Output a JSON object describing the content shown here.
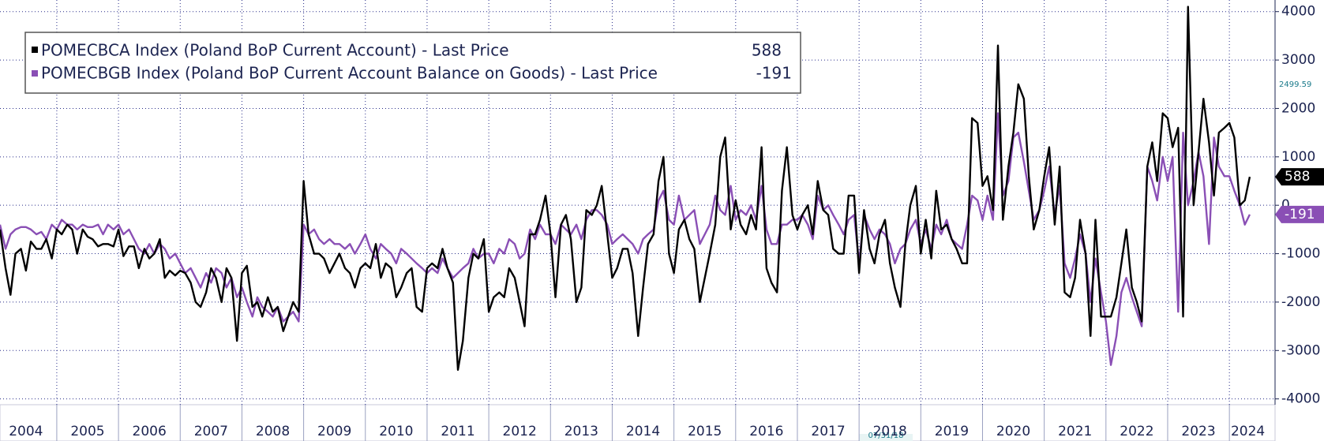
{
  "chart_data": {
    "type": "line",
    "x": [
      2004.08,
      2004.17,
      2004.25,
      2004.33,
      2004.42,
      2004.5,
      2004.58,
      2004.67,
      2004.75,
      2004.83,
      2004.92,
      2005,
      2005.08,
      2005.17,
      2005.25,
      2005.33,
      2005.42,
      2005.5,
      2005.58,
      2005.67,
      2005.75,
      2005.83,
      2005.92,
      2006,
      2006.08,
      2006.17,
      2006.25,
      2006.33,
      2006.42,
      2006.5,
      2006.58,
      2006.67,
      2006.75,
      2006.83,
      2006.92,
      2007,
      2007.08,
      2007.17,
      2007.25,
      2007.33,
      2007.42,
      2007.5,
      2007.58,
      2007.67,
      2007.75,
      2007.83,
      2007.92,
      2008,
      2008.08,
      2008.17,
      2008.25,
      2008.33,
      2008.42,
      2008.5,
      2008.58,
      2008.67,
      2008.75,
      2008.83,
      2008.92,
      2009,
      2009.08,
      2009.17,
      2009.25,
      2009.33,
      2009.42,
      2009.5,
      2009.58,
      2009.67,
      2009.75,
      2009.83,
      2009.92,
      2010,
      2010.08,
      2010.17,
      2010.25,
      2010.33,
      2010.42,
      2010.5,
      2010.58,
      2010.67,
      2010.75,
      2010.83,
      2010.92,
      2011,
      2011.08,
      2011.17,
      2011.25,
      2011.33,
      2011.42,
      2011.5,
      2011.58,
      2011.67,
      2011.75,
      2011.83,
      2011.92,
      2012,
      2012.08,
      2012.17,
      2012.25,
      2012.33,
      2012.42,
      2012.5,
      2012.58,
      2012.67,
      2012.75,
      2012.83,
      2012.92,
      2013,
      2013.08,
      2013.17,
      2013.25,
      2013.33,
      2013.42,
      2013.5,
      2013.58,
      2013.67,
      2013.75,
      2013.83,
      2013.92,
      2014,
      2014.08,
      2014.17,
      2014.25,
      2014.33,
      2014.42,
      2014.5,
      2014.58,
      2014.67,
      2014.75,
      2014.83,
      2014.92,
      2015,
      2015.08,
      2015.17,
      2015.25,
      2015.33,
      2015.42,
      2015.5,
      2015.58,
      2015.67,
      2015.75,
      2015.83,
      2015.92,
      2016,
      2016.08,
      2016.17,
      2016.25,
      2016.33,
      2016.42,
      2016.5,
      2016.58,
      2016.67,
      2016.75,
      2016.83,
      2016.92,
      2017,
      2017.08,
      2017.17,
      2017.25,
      2017.33,
      2017.42,
      2017.5,
      2017.58,
      2017.67,
      2017.75,
      2017.83,
      2017.92,
      2018,
      2018.08,
      2018.17,
      2018.25,
      2018.33,
      2018.42,
      2018.5,
      2018.58,
      2018.67,
      2018.75,
      2018.83,
      2018.92,
      2019,
      2019.08,
      2019.17,
      2019.25,
      2019.33,
      2019.42,
      2019.5,
      2019.58,
      2019.67,
      2019.75,
      2019.83,
      2019.92,
      2020,
      2020.08,
      2020.17,
      2020.25,
      2020.33,
      2020.42,
      2020.5,
      2020.58,
      2020.67,
      2020.75,
      2020.83,
      2020.92,
      2021,
      2021.08,
      2021.17,
      2021.25,
      2021.33,
      2021.42,
      2021.5,
      2021.58,
      2021.67,
      2021.75,
      2021.83,
      2021.92,
      2022,
      2022.08,
      2022.17,
      2022.25,
      2022.33,
      2022.42,
      2022.5,
      2022.58,
      2022.67,
      2022.75,
      2022.83,
      2022.92,
      2023,
      2023.08,
      2023.17,
      2023.25,
      2023.33,
      2023.42,
      2023.5,
      2023.58,
      2023.67,
      2023.75,
      2023.83,
      2023.92,
      2024,
      2024.08,
      2024.17,
      2024.25,
      2024.33
    ],
    "series": [
      {
        "name": "POMECBCA Index (Poland BoP Current Account) - Last Price",
        "color": "#000000",
        "values": [
          -500,
          -1300,
          -1850,
          -1000,
          -900,
          -1350,
          -750,
          -900,
          -900,
          -700,
          -1100,
          -500,
          -600,
          -400,
          -500,
          -1000,
          -500,
          -650,
          -700,
          -850,
          -800,
          -800,
          -850,
          -500,
          -1050,
          -850,
          -850,
          -1300,
          -900,
          -1100,
          -1000,
          -700,
          -1500,
          -1350,
          -1450,
          -1350,
          -1400,
          -1600,
          -2000,
          -2100,
          -1800,
          -1300,
          -1500,
          -2000,
          -1300,
          -1500,
          -2800,
          -1400,
          -1250,
          -2100,
          -2000,
          -2300,
          -1900,
          -2200,
          -2100,
          -2600,
          -2300,
          -2000,
          -2200,
          500,
          -600,
          -1000,
          -1000,
          -1100,
          -1400,
          -1200,
          -1000,
          -1300,
          -1400,
          -1700,
          -1300,
          -1200,
          -1300,
          -800,
          -1500,
          -1200,
          -1300,
          -1900,
          -1700,
          -1400,
          -1300,
          -2100,
          -2200,
          -1300,
          -1200,
          -1300,
          -900,
          -1300,
          -1600,
          -3400,
          -2800,
          -1500,
          -1000,
          -1100,
          -700,
          -2200,
          -1900,
          -1800,
          -1900,
          -1300,
          -1500,
          -2000,
          -2500,
          -600,
          -600,
          -300,
          200,
          -600,
          -1900,
          -400,
          -200,
          -700,
          -2000,
          -1700,
          -100,
          -200,
          0,
          400,
          -600,
          -1500,
          -1300,
          -900,
          -900,
          -1400,
          -2700,
          -1700,
          -800,
          -600,
          500,
          1000,
          -1000,
          -1400,
          -500,
          -300,
          -700,
          -900,
          -2000,
          -1500,
          -1000,
          -400,
          1000,
          1400,
          -500,
          100,
          -400,
          -600,
          -200,
          -500,
          1200,
          -1300,
          -1600,
          -1800,
          300,
          1200,
          -200,
          -500,
          -200,
          0,
          -600,
          500,
          -100,
          -200,
          -900,
          -1000,
          -1000,
          200,
          200,
          -1400,
          -100,
          -900,
          -1200,
          -600,
          -300,
          -1200,
          -1700,
          -2100,
          -800,
          0,
          400,
          -1000,
          -300,
          -1100,
          300,
          -500,
          -400,
          -700,
          -900,
          -1200,
          -1200,
          1800,
          1700,
          400,
          600,
          -100,
          3300,
          -300,
          800,
          1500,
          2500,
          2200,
          600,
          -500,
          -100,
          600,
          1200,
          -400,
          800,
          -1800,
          -1900,
          -1500,
          -300,
          -1000,
          -2700,
          -300,
          -2300,
          -2300,
          -2300,
          -1900,
          -1200,
          -500,
          -1700,
          -2000,
          -2400,
          800,
          1300,
          500,
          1900,
          1800,
          1200,
          1600,
          -2300,
          4100,
          0,
          1100,
          2200,
          1300,
          200,
          1500,
          1600,
          1700,
          1400,
          0,
          100,
          588
        ]
      },
      {
        "name": "POMECBGB Index (Poland BoP Current Account Balance on Goods) - Last Price",
        "color": "#8a4fb5",
        "values": [
          -400,
          -900,
          -600,
          -500,
          -450,
          -450,
          -500,
          -600,
          -550,
          -700,
          -400,
          -500,
          -300,
          -400,
          -400,
          -500,
          -400,
          -450,
          -450,
          -400,
          -600,
          -400,
          -500,
          -400,
          -600,
          -500,
          -700,
          -900,
          -1000,
          -800,
          -1000,
          -800,
          -900,
          -1100,
          -1000,
          -1200,
          -1400,
          -1300,
          -1500,
          -1700,
          -1400,
          -1600,
          -1300,
          -1400,
          -1700,
          -1500,
          -1900,
          -1700,
          -2000,
          -2300,
          -1900,
          -2100,
          -2200,
          -2300,
          -2100,
          -2400,
          -2300,
          -2200,
          -2400,
          -400,
          -600,
          -500,
          -700,
          -800,
          -700,
          -800,
          -800,
          -900,
          -800,
          -1000,
          -800,
          -600,
          -900,
          -1100,
          -800,
          -900,
          -1000,
          -1200,
          -900,
          -1000,
          -1100,
          -1200,
          -1300,
          -1400,
          -1300,
          -1400,
          -1100,
          -1300,
          -1500,
          -1400,
          -1300,
          -1200,
          -900,
          -1100,
          -1000,
          -1000,
          -1200,
          -900,
          -1000,
          -700,
          -800,
          -1100,
          -1000,
          -500,
          -700,
          -400,
          -600,
          -600,
          -800,
          -400,
          -500,
          -600,
          -400,
          -700,
          -300,
          -100,
          -100,
          -200,
          -400,
          -800,
          -700,
          -600,
          -700,
          -800,
          -1000,
          -700,
          -600,
          -500,
          100,
          300,
          -300,
          -400,
          200,
          -300,
          -200,
          -100,
          -800,
          -600,
          -400,
          200,
          -100,
          -200,
          400,
          -300,
          -100,
          -200,
          0,
          -300,
          400,
          -500,
          -800,
          -800,
          -400,
          -400,
          -300,
          -300,
          -200,
          -400,
          -700,
          200,
          -100,
          0,
          -200,
          -400,
          -600,
          -300,
          -200,
          -1200,
          -200,
          -500,
          -700,
          -500,
          -600,
          -800,
          -1200,
          -900,
          -800,
          -500,
          -300,
          -800,
          -500,
          -900,
          -400,
          -600,
          -300,
          -700,
          -800,
          -900,
          -400,
          200,
          100,
          -300,
          200,
          -300,
          1900,
          200,
          500,
          1400,
          1500,
          900,
          300,
          -300,
          -100,
          300,
          800,
          -200,
          400,
          -1200,
          -1500,
          -1100,
          -600,
          -1000,
          -2000,
          -1100,
          -1800,
          -2400,
          -3300,
          -2700,
          -1800,
          -1500,
          -1900,
          -2200,
          -2500,
          800,
          500,
          100,
          1000,
          500,
          1000,
          -2200,
          1500,
          0,
          500,
          1100,
          600,
          -800,
          1400,
          800,
          600,
          600,
          300,
          0,
          -400,
          -191
        ]
      }
    ],
    "xlim": [
      2004.08,
      2024.74
    ],
    "xticks": [
      {
        "value": 2004.5,
        "label": "2004"
      },
      {
        "value": 2005.5,
        "label": "2005"
      },
      {
        "value": 2006.5,
        "label": "2006"
      },
      {
        "value": 2007.5,
        "label": "2007"
      },
      {
        "value": 2008.5,
        "label": "2008"
      },
      {
        "value": 2009.5,
        "label": "2009"
      },
      {
        "value": 2010.5,
        "label": "2010"
      },
      {
        "value": 2011.5,
        "label": "2011"
      },
      {
        "value": 2012.5,
        "label": "2012"
      },
      {
        "value": 2013.5,
        "label": "2013"
      },
      {
        "value": 2014.5,
        "label": "2014"
      },
      {
        "value": 2015.5,
        "label": "2015"
      },
      {
        "value": 2016.5,
        "label": "2016"
      },
      {
        "value": 2017.5,
        "label": "2017"
      },
      {
        "value": 2018.5,
        "label": "2018"
      },
      {
        "value": 2019.5,
        "label": "2019"
      },
      {
        "value": 2020.5,
        "label": "2020"
      },
      {
        "value": 2021.5,
        "label": "2021"
      },
      {
        "value": 2022.5,
        "label": "2022"
      },
      {
        "value": 2023.5,
        "label": "2023"
      },
      {
        "value": 2024.3,
        "label": "2024"
      }
    ],
    "xgrid": [
      2005,
      2006,
      2007,
      2008,
      2009,
      2010,
      2011,
      2012,
      2013,
      2014,
      2015,
      2016,
      2017,
      2018,
      2019,
      2020,
      2021,
      2022,
      2023,
      2024
    ],
    "ylim": [
      -4120,
      4240
    ],
    "yticks": [
      -4000,
      -3000,
      -2000,
      -1000,
      0,
      1000,
      2000,
      3000,
      4000
    ],
    "grid": true,
    "legend": "top-left",
    "annotations": [
      {
        "text": "2499.59"
      },
      {
        "text": "07/31/18"
      }
    ]
  }
}
